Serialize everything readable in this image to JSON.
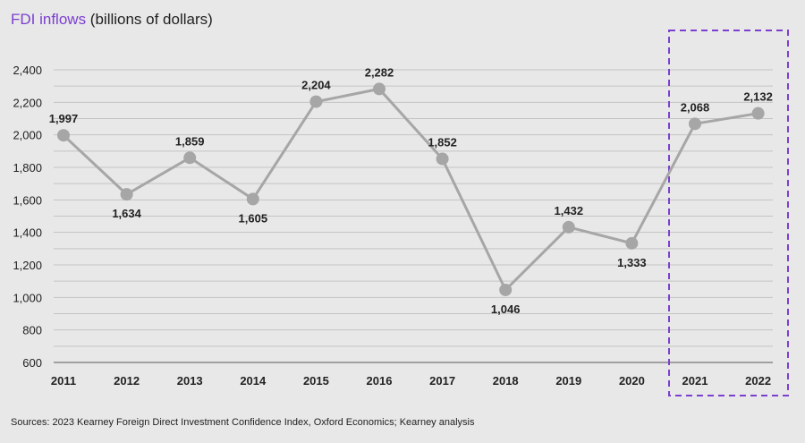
{
  "title": {
    "accent": "FDI inflows",
    "rest": " (billions of dollars)"
  },
  "source": "Sources: 2023 Kearney Foreign Direct Investment Confidence Index, Oxford Economics; Kearney analysis",
  "colors": {
    "accent": "#7b3fd0",
    "line": "#a6a6a6",
    "marker": "#a6a6a6",
    "grid": "#c4c4c4",
    "axis": "#a0a0a0",
    "text": "#222222"
  },
  "chart_data": {
    "type": "line",
    "title": "FDI inflows (billions of dollars)",
    "xlabel": "",
    "ylabel": "",
    "categories": [
      "2011",
      "2012",
      "2013",
      "2014",
      "2015",
      "2016",
      "2017",
      "2018",
      "2019",
      "2020",
      "2021",
      "2022"
    ],
    "values": [
      1997,
      1634,
      1859,
      1605,
      2204,
      2282,
      1852,
      1046,
      1432,
      1333,
      2068,
      2132
    ],
    "data_labels": [
      "1,997",
      "1,634",
      "1,859",
      "1,605",
      "2,204",
      "2,282",
      "1,852",
      "1,046",
      "1,432",
      "1,333",
      "2,068",
      "2,132"
    ],
    "label_positions": [
      "above",
      "below",
      "above",
      "below",
      "above",
      "above",
      "above",
      "below",
      "above",
      "below",
      "above",
      "above"
    ],
    "ylim": [
      600,
      2400
    ],
    "yticks": [
      600,
      800,
      1000,
      1200,
      1400,
      1600,
      1800,
      2000,
      2200,
      2400
    ],
    "ytick_labels": [
      "600",
      "800",
      "1,000",
      "1,200",
      "1,400",
      "1,600",
      "1,800",
      "2,000",
      "2,200",
      "2,400"
    ],
    "minor_grid_step": 100,
    "grid": true,
    "highlight": {
      "categories": [
        "2021",
        "2022"
      ],
      "style": "dashed-box"
    }
  }
}
